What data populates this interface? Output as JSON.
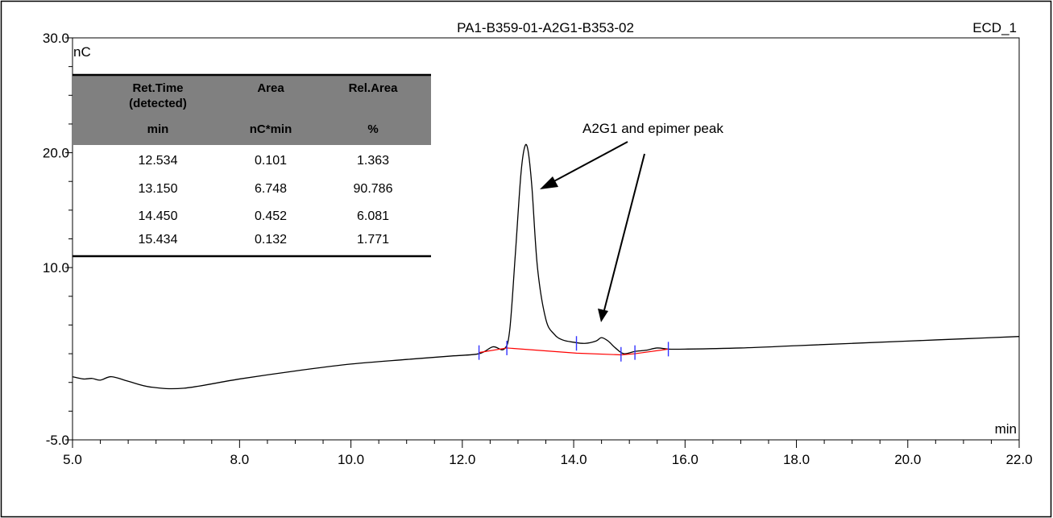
{
  "chart_data": {
    "type": "line",
    "title": "PA1-B359-01-A2G1-B353-02",
    "channel": "ECD_1",
    "xlabel": "min",
    "ylabel": "nC",
    "xlim": [
      5.0,
      22.0
    ],
    "ylim": [
      -5.0,
      30.0
    ],
    "x_ticks": [
      {
        "value": 5.0,
        "label": "5.0"
      },
      {
        "value": 8.0,
        "label": "8.0"
      },
      {
        "value": 10.0,
        "label": "10.0"
      },
      {
        "value": 12.0,
        "label": "12.0"
      },
      {
        "value": 14.0,
        "label": "14.0"
      },
      {
        "value": 16.0,
        "label": "16.0"
      },
      {
        "value": 18.0,
        "label": "18.0"
      },
      {
        "value": 20.0,
        "label": "20.0"
      },
      {
        "value": 22.0,
        "label": "22.0"
      }
    ],
    "y_ticks": [
      {
        "value": -5.0,
        "label": "-5.0"
      },
      {
        "value": 10.0,
        "label": "10.0"
      },
      {
        "value": 20.0,
        "label": "20.0"
      },
      {
        "value": 30.0,
        "label": "30.0"
      }
    ],
    "grid": false,
    "series": [
      {
        "name": "",
        "color": "#000000",
        "x": [
          5.0,
          5.2,
          5.35,
          5.5,
          5.7,
          6.0,
          6.4,
          7.0,
          8.0,
          9.0,
          10.0,
          11.0,
          11.8,
          12.3,
          12.55,
          12.75,
          12.85,
          12.95,
          13.05,
          13.12,
          13.18,
          13.25,
          13.35,
          13.5,
          13.65,
          13.8,
          14.0,
          14.2,
          14.4,
          14.5,
          14.62,
          14.75,
          14.9,
          15.1,
          15.3,
          15.5,
          15.7,
          16.0,
          17.0,
          18.0,
          19.0,
          20.0,
          21.0,
          22.0
        ],
        "y": [
          0.5,
          0.3,
          0.35,
          0.2,
          0.5,
          0.1,
          -0.4,
          -0.5,
          0.3,
          1.0,
          1.6,
          2.0,
          2.3,
          2.5,
          3.1,
          2.9,
          4.5,
          11.0,
          18.0,
          20.5,
          20.2,
          17.0,
          10.0,
          5.5,
          4.2,
          3.7,
          3.5,
          3.4,
          3.6,
          3.9,
          3.6,
          3.0,
          2.5,
          2.7,
          2.8,
          3.0,
          2.9,
          2.9,
          3.0,
          3.2,
          3.4,
          3.6,
          3.8,
          4.0
        ]
      }
    ],
    "baseline": {
      "color": "#ff0000",
      "x": [
        12.3,
        12.8,
        14.05,
        14.85,
        15.1,
        15.7
      ],
      "y": [
        2.6,
        3.0,
        2.55,
        2.4,
        2.5,
        2.9
      ]
    },
    "peak_markers": [
      {
        "x": 12.3,
        "y": 2.6
      },
      {
        "x": 12.8,
        "y": 3.0
      },
      {
        "x": 14.05,
        "y": 3.4
      },
      {
        "x": 14.85,
        "y": 2.45
      },
      {
        "x": 15.1,
        "y": 2.6
      },
      {
        "x": 15.7,
        "y": 2.9
      }
    ],
    "annotations": [
      {
        "text": "A2G1 and epimer peak"
      }
    ],
    "table": {
      "headers": [
        {
          "line1": "Ret.Time",
          "line2": "(detected)",
          "unit": "min"
        },
        {
          "line1": "Area",
          "line2": "",
          "unit": "nC*min"
        },
        {
          "line1": "Rel.Area",
          "line2": "",
          "unit": "%"
        }
      ],
      "rows": [
        [
          "12.534",
          "0.101",
          "1.363"
        ],
        [
          "13.150",
          "6.748",
          "90.786"
        ],
        [
          "14.450",
          "0.452",
          "6.081"
        ],
        [
          "15.434",
          "0.132",
          "1.771"
        ]
      ]
    }
  }
}
